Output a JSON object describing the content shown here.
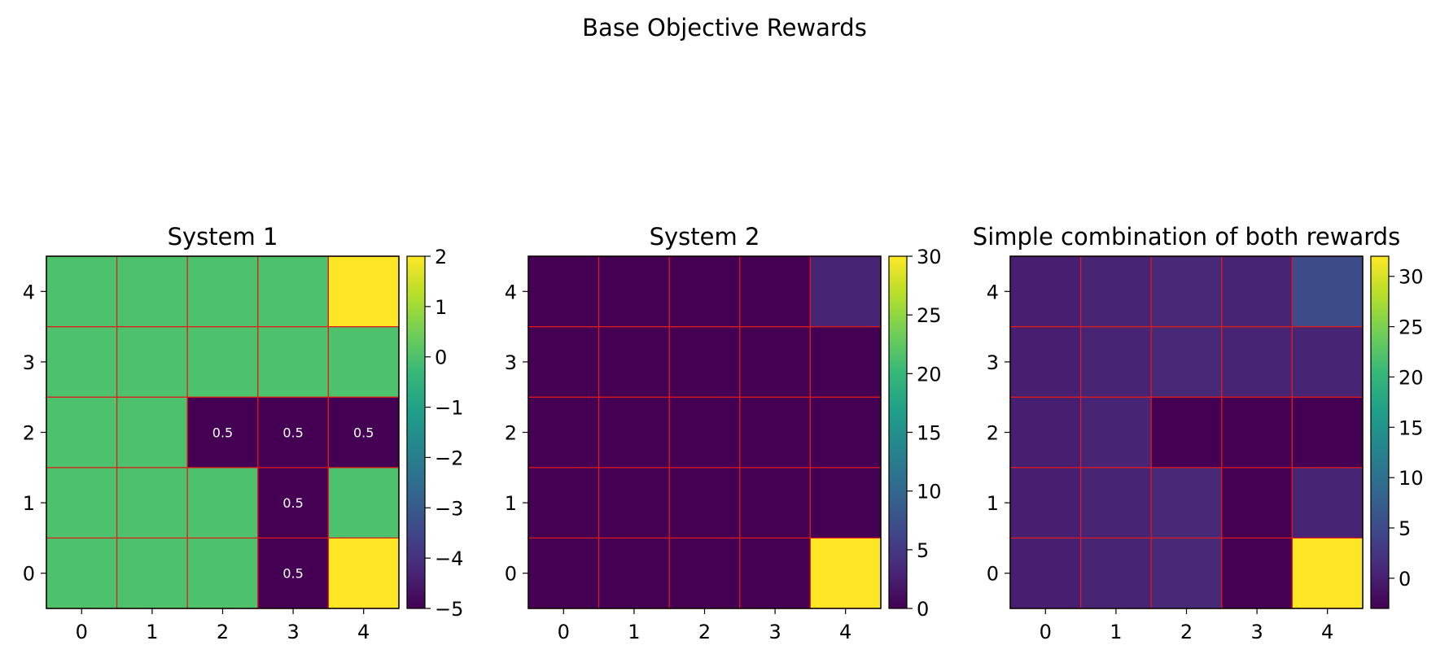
{
  "suptitle": "Base Objective Rewards",
  "chart_data": [
    {
      "type": "heatmap",
      "title": "System 1",
      "x_ticks": [
        "0",
        "1",
        "2",
        "3",
        "4"
      ],
      "y_ticks": [
        "0",
        "1",
        "2",
        "3",
        "4"
      ],
      "origin": "lower",
      "grid_color": "#e31a1c",
      "values": [
        [
          0,
          0,
          0,
          -5,
          2
        ],
        [
          0,
          0,
          0,
          -5,
          0
        ],
        [
          0,
          0,
          -5,
          -5,
          -5
        ],
        [
          0,
          0,
          0,
          0,
          0
        ],
        [
          0,
          0,
          0,
          0,
          2
        ]
      ],
      "annotations": [
        {
          "x": 3,
          "y": 0,
          "text": "0.5"
        },
        {
          "x": 3,
          "y": 1,
          "text": "0.5"
        },
        {
          "x": 2,
          "y": 2,
          "text": "0.5"
        },
        {
          "x": 3,
          "y": 2,
          "text": "0.5"
        },
        {
          "x": 4,
          "y": 2,
          "text": "0.5"
        }
      ],
      "colorbar": {
        "vmin": -5,
        "vmax": 2,
        "ticks": [
          2,
          1,
          0,
          -1,
          -2,
          -3,
          -4,
          -5
        ],
        "tick_labels": [
          "2",
          "1",
          "0",
          "−1",
          "−2",
          "−3",
          "−4",
          "−5"
        ]
      }
    },
    {
      "type": "heatmap",
      "title": "System 2",
      "x_ticks": [
        "0",
        "1",
        "2",
        "3",
        "4"
      ],
      "y_ticks": [
        "0",
        "1",
        "2",
        "3",
        "4"
      ],
      "origin": "lower",
      "grid_color": "#e31a1c",
      "values": [
        [
          0,
          0,
          0,
          0,
          30
        ],
        [
          0,
          0,
          0,
          0,
          0
        ],
        [
          0,
          0,
          0,
          0,
          0
        ],
        [
          0,
          0,
          0,
          0,
          0
        ],
        [
          0,
          0,
          0,
          0,
          3
        ]
      ],
      "annotations": [],
      "colorbar": {
        "vmin": 0,
        "vmax": 30,
        "ticks": [
          30,
          25,
          20,
          15,
          10,
          5,
          0
        ],
        "tick_labels": [
          "30",
          "25",
          "20",
          "15",
          "10",
          "5",
          "0"
        ]
      }
    },
    {
      "type": "heatmap",
      "title": "Simple combination of both rewards",
      "x_ticks": [
        "0",
        "1",
        "2",
        "3",
        "4"
      ],
      "y_ticks": [
        "0",
        "1",
        "2",
        "3",
        "4"
      ],
      "origin": "lower",
      "grid_color": "#e31a1c",
      "values": [
        [
          0,
          0.5,
          1,
          -3,
          32
        ],
        [
          0,
          0.5,
          1,
          -3,
          0.5
        ],
        [
          0,
          0.5,
          -3,
          -3,
          -3
        ],
        [
          0,
          0.5,
          1,
          0.5,
          0.5
        ],
        [
          0,
          0.5,
          1,
          0.5,
          5
        ]
      ],
      "annotations": [],
      "colorbar": {
        "vmin": -3,
        "vmax": 32,
        "ticks": [
          30,
          25,
          20,
          15,
          10,
          5,
          0
        ],
        "tick_labels": [
          "30",
          "25",
          "20",
          "15",
          "10",
          "5",
          "0"
        ]
      }
    }
  ]
}
